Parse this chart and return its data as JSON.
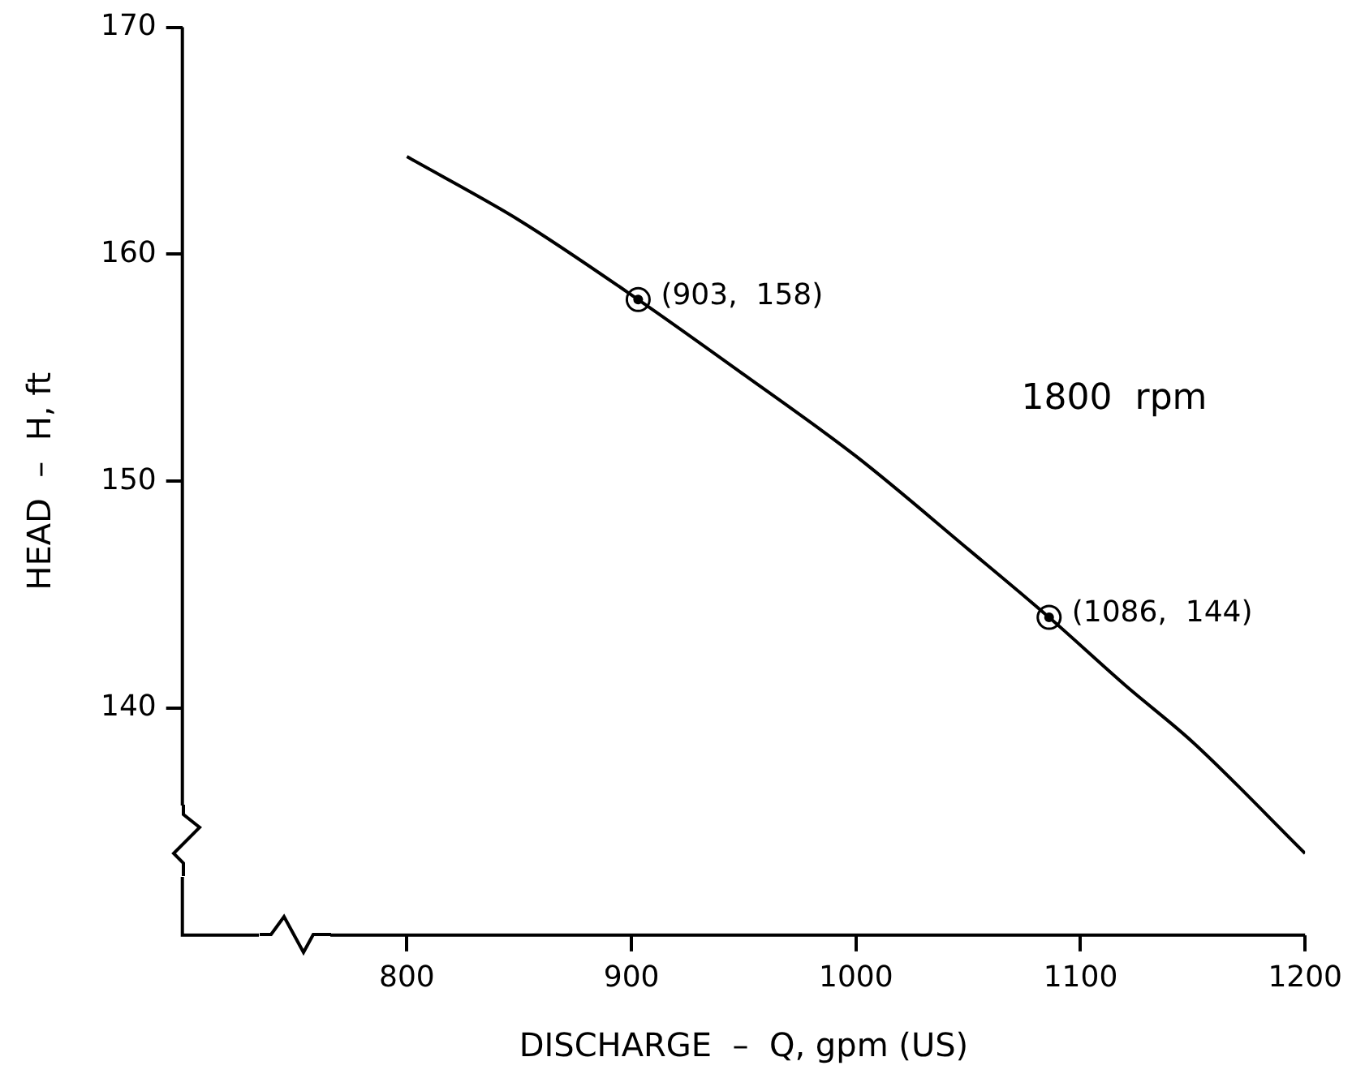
{
  "chart_data": {
    "type": "line",
    "xlabel": "DISCHARGE  –  Q, gpm (US)",
    "ylabel": "HEAD  –  H, ft",
    "xlim": [
      700,
      1200
    ],
    "xticks": [
      800,
      900,
      1000,
      1100,
      1200
    ],
    "ylim": [
      130,
      170
    ],
    "yticks": [
      140,
      150,
      160,
      170
    ],
    "grid": false,
    "legend": false,
    "series": [
      {
        "type": "line",
        "color": "#000000",
        "marker": "none",
        "x": [
          800,
          850,
          903,
          950,
          1000,
          1050,
          1086,
          1120,
          1150,
          1200
        ],
        "values": [
          164.3,
          161.5,
          158,
          154.7,
          151.1,
          147.0,
          144,
          141.0,
          138.5,
          133.6
        ]
      },
      {
        "type": "scatter",
        "color": "#000000",
        "marker": "circle",
        "x": [
          903,
          1086
        ],
        "values": [
          158,
          144
        ]
      }
    ],
    "annotations": [
      {
        "text": "(903,  158)",
        "x": 903,
        "y": 158
      },
      {
        "text": "(1086,  144)",
        "x": 1086,
        "y": 144
      },
      "1800  rpm"
    ]
  }
}
